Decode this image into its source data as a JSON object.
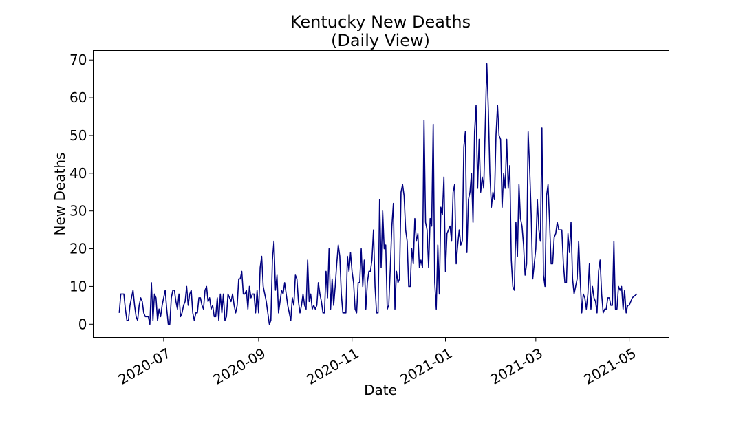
{
  "chart_data": {
    "type": "line",
    "title_line1": "Kentucky New Deaths",
    "title_line2": "(Daily View)",
    "xlabel": "Date",
    "ylabel": "New Deaths",
    "start_date": "2020-06-02",
    "y_ticks": [
      0,
      10,
      20,
      30,
      40,
      50,
      60,
      70
    ],
    "y_tick_labels": [
      "0",
      "10",
      "20",
      "30",
      "40",
      "50",
      "60",
      "70"
    ],
    "x_ticks": [
      "2020-07-01",
      "2020-09-01",
      "2020-11-01",
      "2021-01-01",
      "2021-03-01",
      "2021-05-01"
    ],
    "x_tick_labels": [
      "2020-07",
      "2020-09",
      "2020-11",
      "2021-01",
      "2021-03",
      "2021-05"
    ],
    "xlim": [
      "2020-05-16",
      "2021-05-27"
    ],
    "ylim": [
      -3.5,
      72.5
    ],
    "grid": false,
    "line_color": "#00007f",
    "series": [
      {
        "values": [
          3,
          8,
          8,
          8,
          4,
          1,
          1,
          5,
          7,
          9,
          5,
          2,
          1,
          5,
          7,
          6,
          3,
          2,
          2,
          2,
          0,
          11,
          1,
          8,
          7,
          1,
          4,
          2,
          5,
          7,
          9,
          4,
          0,
          0,
          7,
          9,
          9,
          6,
          4,
          8,
          2,
          3,
          5,
          6,
          10,
          5,
          8,
          9,
          3,
          1,
          3,
          3,
          7,
          7,
          5,
          4,
          9,
          10,
          6,
          7,
          4,
          5,
          2,
          2,
          7,
          1,
          8,
          3,
          8,
          1,
          2,
          8,
          7,
          6,
          8,
          5,
          3,
          5,
          12,
          12,
          14,
          8,
          8,
          9,
          4,
          10,
          7,
          8,
          8,
          3,
          9,
          3,
          15,
          18,
          10,
          8,
          6,
          3,
          0,
          1,
          17,
          22,
          9,
          13,
          3,
          6,
          9,
          8,
          11,
          8,
          5,
          3,
          1,
          7,
          5,
          13,
          12,
          6,
          3,
          5,
          8,
          5,
          4,
          17,
          6,
          8,
          4,
          5,
          4,
          5,
          11,
          8,
          6,
          3,
          3,
          14,
          7,
          20,
          4,
          12,
          5,
          10,
          16,
          21,
          18,
          8,
          3,
          3,
          3,
          18,
          14,
          19,
          14,
          11,
          4,
          3,
          11,
          11,
          20,
          10,
          17,
          4,
          11,
          14,
          14,
          17,
          25,
          10,
          3,
          3,
          33,
          15,
          30,
          20,
          21,
          4,
          5,
          15,
          26,
          32,
          4,
          14,
          11,
          12,
          35,
          37,
          34,
          25,
          22,
          10,
          10,
          20,
          16,
          28,
          22,
          24,
          15,
          17,
          15,
          54,
          27,
          25,
          15,
          28,
          26,
          53,
          11,
          4,
          21,
          8,
          31,
          29,
          39,
          14,
          24,
          25,
          26,
          22,
          35,
          37,
          16,
          21,
          25,
          21,
          22,
          47,
          51,
          19,
          33,
          35,
          40,
          27,
          51,
          58,
          36,
          49,
          35,
          39,
          36,
          53,
          69,
          57,
          40,
          31,
          35,
          33,
          50,
          58,
          50,
          49,
          31,
          40,
          36,
          49,
          36,
          42,
          17,
          10,
          9,
          27,
          18,
          37,
          28,
          26,
          21,
          13,
          16,
          51,
          41,
          29,
          12,
          16,
          20,
          33,
          25,
          22,
          52,
          13,
          10,
          34,
          37,
          27,
          16,
          16,
          23,
          24,
          27,
          25,
          25,
          25,
          16,
          11,
          11,
          24,
          19,
          27,
          12,
          8,
          10,
          12,
          22,
          12,
          3,
          8,
          7,
          4,
          8,
          16,
          4,
          10,
          7,
          6,
          3,
          14,
          17,
          8,
          3,
          4,
          4,
          7,
          7,
          5,
          5,
          22,
          4,
          4,
          10,
          9,
          10,
          4,
          9,
          3,
          5,
          5,
          6,
          7,
          8
        ]
      }
    ]
  }
}
